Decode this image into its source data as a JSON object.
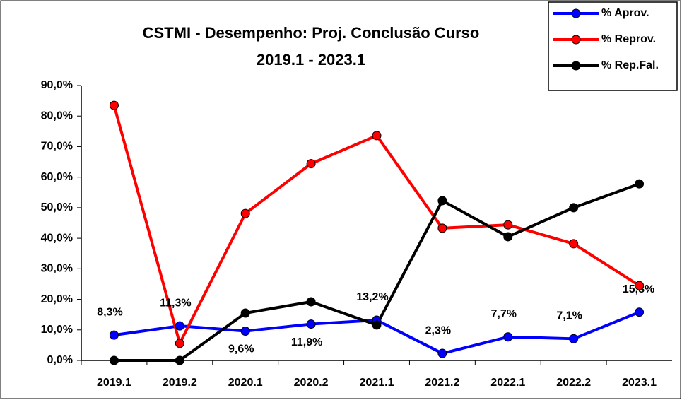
{
  "chart_data": {
    "type": "line",
    "title": "CSTMI - Desempenho: Proj. Conclusão Curso",
    "subtitle": "2019.1 - 2023.1",
    "categories": [
      "2019.1",
      "2019.2",
      "2020.1",
      "2020.2",
      "2021.1",
      "2021.2",
      "2022.1",
      "2022.2",
      "2023.1"
    ],
    "series": [
      {
        "name": "% Aprov.",
        "color": "#0000ff",
        "values": [
          8.3,
          11.3,
          9.6,
          11.9,
          13.2,
          2.3,
          7.7,
          7.1,
          15.8
        ],
        "value_labels": [
          "8,3%",
          "11,3%",
          "9,6%",
          "11,9%",
          "13,2%",
          "2,3%",
          "7,7%",
          "7,1%",
          "15,8%"
        ]
      },
      {
        "name": "% Reprov.",
        "color": "#ff0000",
        "values": [
          83.5,
          5.6,
          48.1,
          64.4,
          73.6,
          43.3,
          44.4,
          38.2,
          24.5
        ]
      },
      {
        "name": "% Rep.Fal.",
        "color": "#000000",
        "values": [
          0,
          0,
          15.5,
          19.2,
          11.6,
          52.3,
          40.5,
          50.0,
          57.8
        ]
      }
    ],
    "ylim": [
      0,
      90
    ],
    "yticks": [
      {
        "value": 0,
        "label": "0,0%"
      },
      {
        "value": 10,
        "label": "10,0%"
      },
      {
        "value": 20,
        "label": "20,0%"
      },
      {
        "value": 30,
        "label": "30,0%"
      },
      {
        "value": 40,
        "label": "40,0%"
      },
      {
        "value": 50,
        "label": "50,0%"
      },
      {
        "value": 60,
        "label": "60,0%"
      },
      {
        "value": 70,
        "label": "70,0%"
      },
      {
        "value": 80,
        "label": "80,0%"
      },
      {
        "value": 90,
        "label": "90,0%"
      }
    ],
    "grid": false,
    "legend": "top-right"
  }
}
